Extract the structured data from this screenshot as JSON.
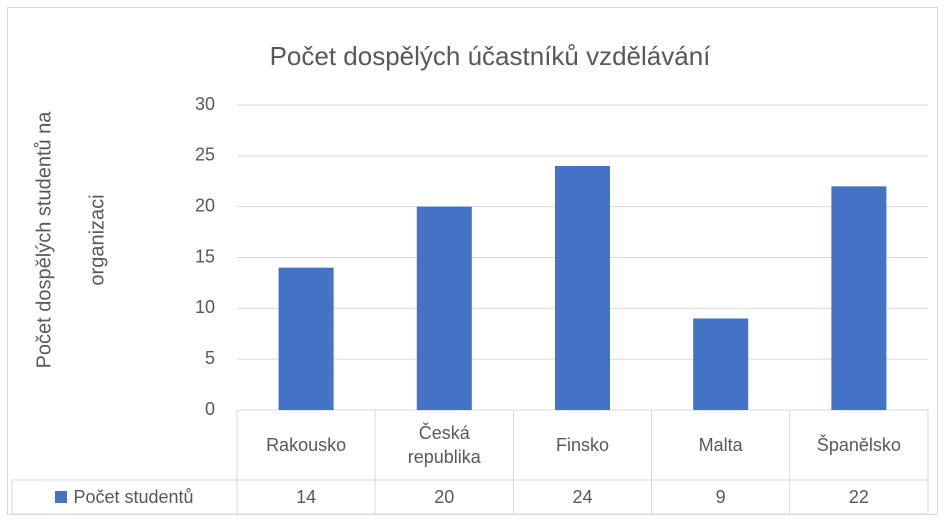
{
  "chart_data": {
    "type": "bar",
    "title": "Počet dospělých účastníků vzdělávání",
    "ylabel": [
      "Počet dospělých studentů na",
      "organizaci"
    ],
    "categories": [
      "Rakousko",
      "Česká republika",
      "Finsko",
      "Malta",
      "Španělsko"
    ],
    "series": [
      {
        "name": "Počet studentů",
        "color": "#4472c4",
        "values": [
          14,
          20,
          24,
          9,
          22
        ]
      }
    ],
    "ylim": [
      0,
      30
    ],
    "yticks": [
      0,
      5,
      10,
      15,
      20,
      25,
      30
    ],
    "grid": true,
    "data_table": true
  }
}
